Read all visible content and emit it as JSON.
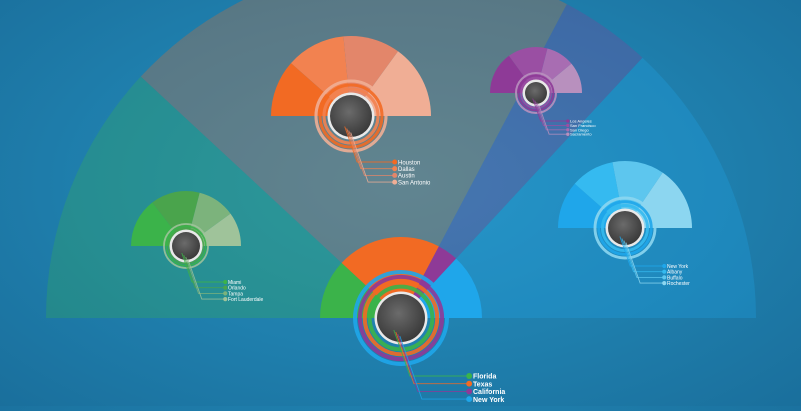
{
  "chart_data": {
    "type": "pie",
    "title": "",
    "main": {
      "categories": [
        "Florida",
        "Texas",
        "California",
        "New York"
      ],
      "values": [
        20,
        35,
        7,
        22
      ],
      "colors": [
        "#3bb34a",
        "#f26a23",
        "#8e3a97",
        "#1fa6ea"
      ]
    },
    "subcharts": [
      {
        "state": "Florida",
        "categories": [
          "Miami",
          "Orlando",
          "Tampa",
          "Fort Lauderdale"
        ],
        "values": [
          29,
          29,
          22,
          20
        ],
        "colors": [
          "#3bb34a",
          "#4aa44c",
          "#7cb37c",
          "#9fc39a"
        ]
      },
      {
        "state": "Texas",
        "categories": [
          "Houston",
          "Dallas",
          "Austin",
          "San Antonio"
        ],
        "values": [
          23,
          24,
          23,
          30
        ],
        "colors": [
          "#f26a23",
          "#f28250",
          "#e3866a",
          "#f0ae95"
        ]
      },
      {
        "state": "California",
        "categories": [
          "Los Angeles",
          "San Francisco",
          "San Diego",
          "Sacramento"
        ],
        "values": [
          30,
          28,
          20,
          22
        ],
        "colors": [
          "#8e3a97",
          "#9a4fa3",
          "#a86db2",
          "#b890be"
        ]
      },
      {
        "state": "New York",
        "categories": [
          "New York",
          "Albany",
          "Buffalo",
          "Rochester"
        ],
        "values": [
          23,
          21,
          25,
          31
        ],
        "colors": [
          "#1fa6ea",
          "#35baf0",
          "#5dc6ee",
          "#8cd6f0"
        ]
      }
    ]
  }
}
